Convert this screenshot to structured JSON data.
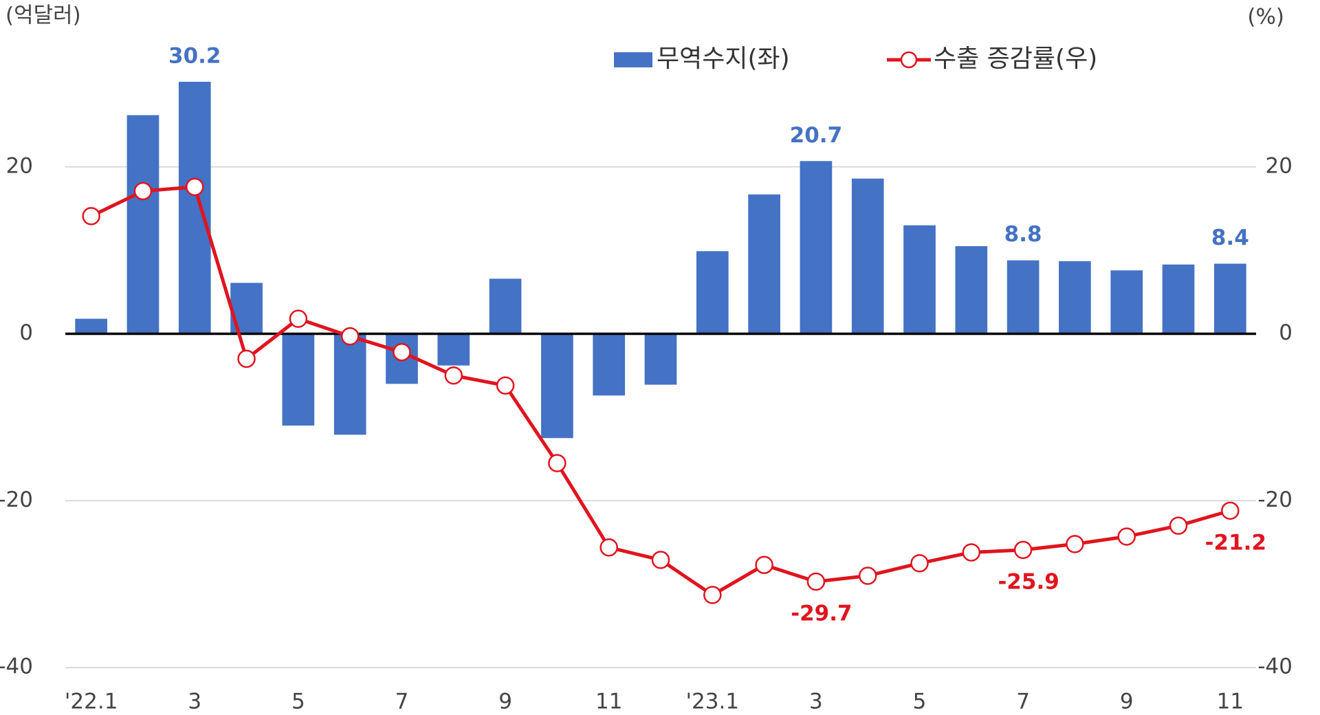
{
  "chart_data": {
    "type": "bar-line",
    "y_label": "(억달러)",
    "y2_label": "(%)",
    "categories": [
      "'22.1",
      null,
      "3",
      null,
      "5",
      null,
      "7",
      null,
      "9",
      null,
      "11",
      null,
      "'23.1",
      null,
      "3",
      null,
      "5",
      null,
      "7",
      null,
      "9",
      null,
      "11"
    ],
    "series": [
      {
        "name": "무역수지(좌)",
        "type": "bar",
        "color": "#4472c4",
        "values": [
          1.8,
          26.2,
          30.2,
          6.1,
          -11.0,
          -12.1,
          -6.0,
          -3.8,
          6.6,
          -12.5,
          -7.4,
          -6.1,
          9.9,
          16.7,
          20.7,
          18.6,
          13.0,
          10.5,
          8.8,
          8.7,
          7.6,
          8.3,
          8.4
        ],
        "value_labels": [
          null,
          null,
          "30.2",
          null,
          null,
          null,
          null,
          null,
          null,
          null,
          null,
          null,
          null,
          null,
          "20.7",
          null,
          null,
          null,
          "8.8",
          null,
          null,
          null,
          "8.4"
        ]
      },
      {
        "name": "수출 증감률(우)",
        "type": "line",
        "axis": "y2",
        "color": "#e0141e",
        "values": [
          14.1,
          17.1,
          17.6,
          -3.0,
          1.8,
          -0.3,
          -2.2,
          -5.0,
          -6.2,
          -15.5,
          -25.6,
          -27.1,
          -31.3,
          -27.7,
          -29.7,
          -29.0,
          -27.5,
          -26.2,
          -25.9,
          -25.2,
          -24.3,
          -23.0,
          -21.2
        ],
        "value_labels": [
          null,
          null,
          null,
          null,
          null,
          null,
          null,
          null,
          null,
          null,
          null,
          null,
          null,
          null,
          "-29.7",
          null,
          null,
          null,
          "-25.9",
          null,
          null,
          null,
          "-21.2"
        ]
      }
    ],
    "ylim": [
      -40,
      40
    ],
    "yticks": [
      -40,
      -20,
      0,
      20
    ],
    "y2lim": [
      -40,
      40
    ],
    "y2ticks": [
      -40,
      -20,
      0,
      20
    ],
    "grid": true,
    "legend": "top"
  }
}
